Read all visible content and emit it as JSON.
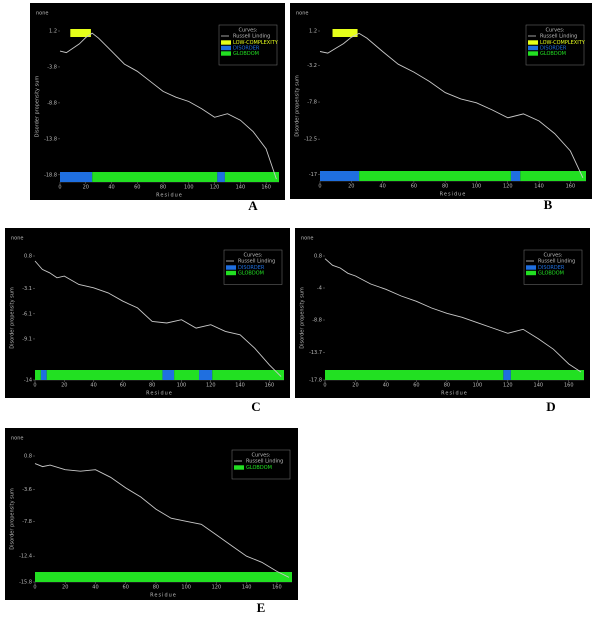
{
  "chart_data": [
    {
      "type": "line",
      "label": "A",
      "title": "none",
      "xlabel": "Residue",
      "ylabel": "Disorder propensity sum",
      "legend_title": "Curves:",
      "xlim": [
        0,
        170
      ],
      "xticks": [
        0,
        20,
        40,
        60,
        80,
        100,
        120,
        140,
        160
      ],
      "ylim": [
        -19.8,
        1.2
      ],
      "yticks": [
        1.2,
        -3.8,
        -8.8,
        -13.8,
        -18.8
      ],
      "series": [
        {
          "name": "Russell Linding",
          "color": "#c8c8c8",
          "x": [
            0,
            5,
            10,
            15,
            20,
            25,
            30,
            40,
            50,
            60,
            70,
            80,
            90,
            100,
            110,
            120,
            130,
            140,
            150,
            160,
            168
          ],
          "values": [
            -1.6,
            -1.8,
            -1.2,
            -0.6,
            0.3,
            0.9,
            0.2,
            -1.6,
            -3.4,
            -4.4,
            -5.8,
            -7.2,
            -8.0,
            -8.6,
            -9.6,
            -10.8,
            -10.3,
            -11.2,
            -12.8,
            -15.2,
            -19.4
          ]
        }
      ],
      "regions": [
        {
          "name": "LOW-COMPLEXITY",
          "color": "#e6ff1a",
          "row": "top",
          "spans": [
            [
              8,
              24
            ]
          ]
        },
        {
          "name": "DISORDER",
          "color": "#1f6fe0",
          "row": "bottom",
          "spans": [
            [
              0,
              25
            ],
            [
              122,
              128
            ]
          ]
        },
        {
          "name": "GLOBDOM",
          "color": "#22e022",
          "row": "bottom",
          "spans": [
            [
              25,
              122
            ],
            [
              128,
              170
            ]
          ]
        }
      ]
    },
    {
      "type": "line",
      "label": "B",
      "title": "none",
      "xlabel": "Residue",
      "ylabel": "Disorder propensity sum",
      "legend_title": "Curves:",
      "xlim": [
        0,
        170
      ],
      "xticks": [
        0,
        20,
        40,
        60,
        80,
        100,
        120,
        140,
        160
      ],
      "ylim": [
        -17.8,
        1.2
      ],
      "yticks": [
        1.2,
        -3.2,
        -7.8,
        -12.5,
        -17.0
      ],
      "series": [
        {
          "name": "Russell Linding",
          "color": "#c8c8c8",
          "x": [
            0,
            5,
            10,
            15,
            20,
            25,
            30,
            40,
            50,
            60,
            70,
            80,
            90,
            100,
            110,
            120,
            130,
            140,
            150,
            160,
            168
          ],
          "values": [
            -1.4,
            -1.6,
            -1.0,
            -0.4,
            0.4,
            0.9,
            0.3,
            -1.4,
            -3.0,
            -4.0,
            -5.2,
            -6.6,
            -7.4,
            -7.9,
            -8.8,
            -9.8,
            -9.3,
            -10.2,
            -11.8,
            -14.0,
            -17.4
          ]
        }
      ],
      "regions": [
        {
          "name": "LOW-COMPLEXITY",
          "color": "#e6ff1a",
          "row": "top",
          "spans": [
            [
              8,
              24
            ]
          ]
        },
        {
          "name": "DISORDER",
          "color": "#1f6fe0",
          "row": "bottom",
          "spans": [
            [
              0,
              25
            ],
            [
              122,
              128
            ]
          ]
        },
        {
          "name": "GLOBDOM",
          "color": "#22e022",
          "row": "bottom",
          "spans": [
            [
              25,
              122
            ],
            [
              128,
              170
            ]
          ]
        }
      ]
    },
    {
      "type": "line",
      "label": "C",
      "title": "none",
      "xlabel": "Residue",
      "ylabel": "Disorder propensity sum",
      "legend_title": "Curves:",
      "xlim": [
        0,
        170
      ],
      "xticks": [
        0,
        20,
        40,
        60,
        80,
        100,
        120,
        140,
        160
      ],
      "ylim": [
        -14.0,
        0.8
      ],
      "yticks": [
        0.8,
        -3.1,
        -6.1,
        -9.1,
        -14.0
      ],
      "series": [
        {
          "name": "Russell Linding",
          "color": "#c8c8c8",
          "x": [
            0,
            5,
            10,
            15,
            20,
            30,
            40,
            50,
            60,
            70,
            80,
            90,
            100,
            110,
            120,
            130,
            140,
            150,
            160,
            168
          ],
          "values": [
            0.2,
            -0.8,
            -1.2,
            -1.8,
            -1.6,
            -2.6,
            -3.0,
            -3.6,
            -4.6,
            -5.4,
            -7.0,
            -7.2,
            -6.8,
            -7.8,
            -7.4,
            -8.2,
            -8.6,
            -10.2,
            -12.2,
            -13.6
          ]
        }
      ],
      "regions": [
        {
          "name": "DISORDER",
          "color": "#1f6fe0",
          "row": "bottom",
          "spans": [
            [
              4,
              8
            ],
            [
              87,
              95
            ],
            [
              112,
              121
            ]
          ]
        },
        {
          "name": "GLOBDOM",
          "color": "#22e022",
          "row": "bottom",
          "spans": [
            [
              0,
              4
            ],
            [
              8,
              87
            ],
            [
              95,
              112
            ],
            [
              121,
              170
            ]
          ]
        }
      ]
    },
    {
      "type": "line",
      "label": "D",
      "title": "none",
      "xlabel": "Residue",
      "ylabel": "Disorder propensity sum",
      "legend_title": "Curves:",
      "xlim": [
        0,
        170
      ],
      "xticks": [
        0,
        20,
        40,
        60,
        80,
        100,
        120,
        140,
        160
      ],
      "ylim": [
        -17.8,
        0.8
      ],
      "yticks": [
        0.8,
        -4.0,
        -8.8,
        -13.7,
        -17.8
      ],
      "series": [
        {
          "name": "Russell Linding",
          "color": "#c8c8c8",
          "x": [
            0,
            5,
            10,
            15,
            20,
            30,
            40,
            50,
            60,
            70,
            80,
            90,
            100,
            110,
            120,
            130,
            140,
            150,
            160,
            168
          ],
          "values": [
            0.4,
            -0.6,
            -1.0,
            -1.8,
            -2.2,
            -3.4,
            -4.2,
            -5.2,
            -6.0,
            -7.0,
            -7.8,
            -8.4,
            -9.2,
            -10.0,
            -10.8,
            -10.2,
            -11.6,
            -13.2,
            -15.4,
            -16.6
          ]
        }
      ],
      "regions": [
        {
          "name": "DISORDER",
          "color": "#1f6fe0",
          "row": "bottom",
          "spans": [
            [
              117,
              122
            ]
          ]
        },
        {
          "name": "GLOBDOM",
          "color": "#22e022",
          "row": "bottom",
          "spans": [
            [
              0,
              117
            ],
            [
              122,
              170
            ]
          ]
        }
      ]
    },
    {
      "type": "line",
      "label": "E",
      "title": "none",
      "xlabel": "Residue",
      "ylabel": "Disorder propensity sum",
      "legend_title": "Curves:",
      "xlim": [
        0,
        170
      ],
      "xticks": [
        0,
        20,
        40,
        60,
        80,
        100,
        120,
        140,
        160
      ],
      "ylim": [
        -15.8,
        0.8
      ],
      "yticks": [
        0.8,
        -3.6,
        -7.8,
        -12.4,
        -15.8
      ],
      "series": [
        {
          "name": "Russell Linding",
          "color": "#c8c8c8",
          "x": [
            0,
            5,
            10,
            20,
            30,
            40,
            50,
            60,
            70,
            80,
            90,
            100,
            110,
            120,
            130,
            140,
            150,
            160,
            168
          ],
          "values": [
            -0.2,
            -0.6,
            -0.4,
            -1.0,
            -1.2,
            -1.0,
            -2.0,
            -3.4,
            -4.6,
            -6.2,
            -7.4,
            -7.8,
            -8.2,
            -9.6,
            -11.0,
            -12.4,
            -13.2,
            -14.4,
            -15.2
          ]
        }
      ],
      "regions": [
        {
          "name": "GLOBDOM",
          "color": "#22e022",
          "row": "bottom",
          "spans": [
            [
              0,
              170
            ]
          ]
        }
      ]
    }
  ]
}
